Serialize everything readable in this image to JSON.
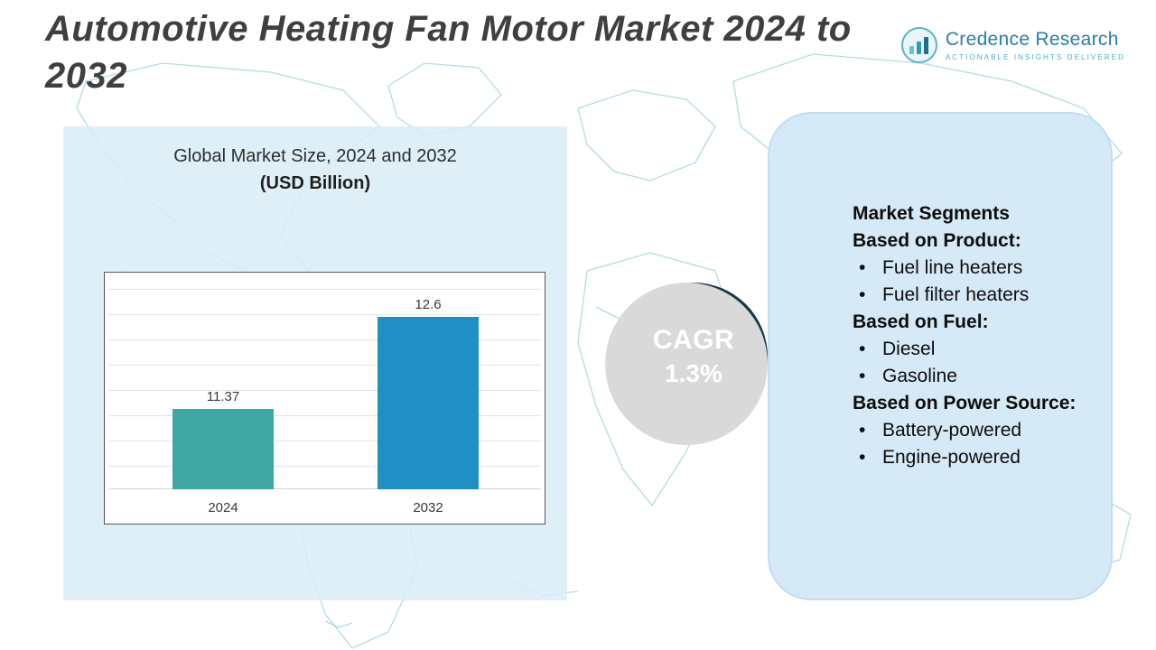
{
  "page": {
    "title": "Automotive Heating Fan Motor Market 2024 to 2032"
  },
  "logo": {
    "name": "Credence Research",
    "tagline": "Actionable Insights Delivered"
  },
  "chart_panel": {
    "heading": "Global Market Size, 2024 and 2032",
    "subheading": "(USD Billion)"
  },
  "cagr_badge": {
    "label": "CAGR",
    "value": "1.3%"
  },
  "segments_panel": {
    "lines": [
      {
        "text": "Market Segments",
        "style": "heading"
      },
      {
        "text": "Based on Product:",
        "style": "heading"
      },
      {
        "text": "Fuel line heaters",
        "style": "bullet"
      },
      {
        "text": "Fuel filter heaters",
        "style": "bullet"
      },
      {
        "text": "Based on Fuel:",
        "style": "heading"
      },
      {
        "text": "Diesel",
        "style": "bullet"
      },
      {
        "text": "Gasoline",
        "style": "bullet"
      },
      {
        "text": "Based on Power Source:",
        "style": "heading"
      },
      {
        "text": "Battery-powered",
        "style": "bullet"
      },
      {
        "text": "Engine-powered",
        "style": "bullet"
      }
    ]
  },
  "chart_data": {
    "type": "bar",
    "title": "Global Market Size, 2024 and 2032",
    "subtitle": "(USD Billion)",
    "unit": "USD Billion",
    "categories": [
      "2024",
      "2032"
    ],
    "values": [
      11.37,
      12.6
    ],
    "bar_colors": [
      "#3fa7a3",
      "#1f8fc4"
    ],
    "ylim": [
      10.3,
      13.0
    ],
    "grid": true,
    "legend": "none"
  },
  "colors": {
    "accent_teal": "#3fa7a3",
    "accent_blue": "#1f8fc4",
    "badge_dark": "#143b46",
    "panel_blue": "#d6e9f6",
    "map_line": "#a4d6dc"
  }
}
